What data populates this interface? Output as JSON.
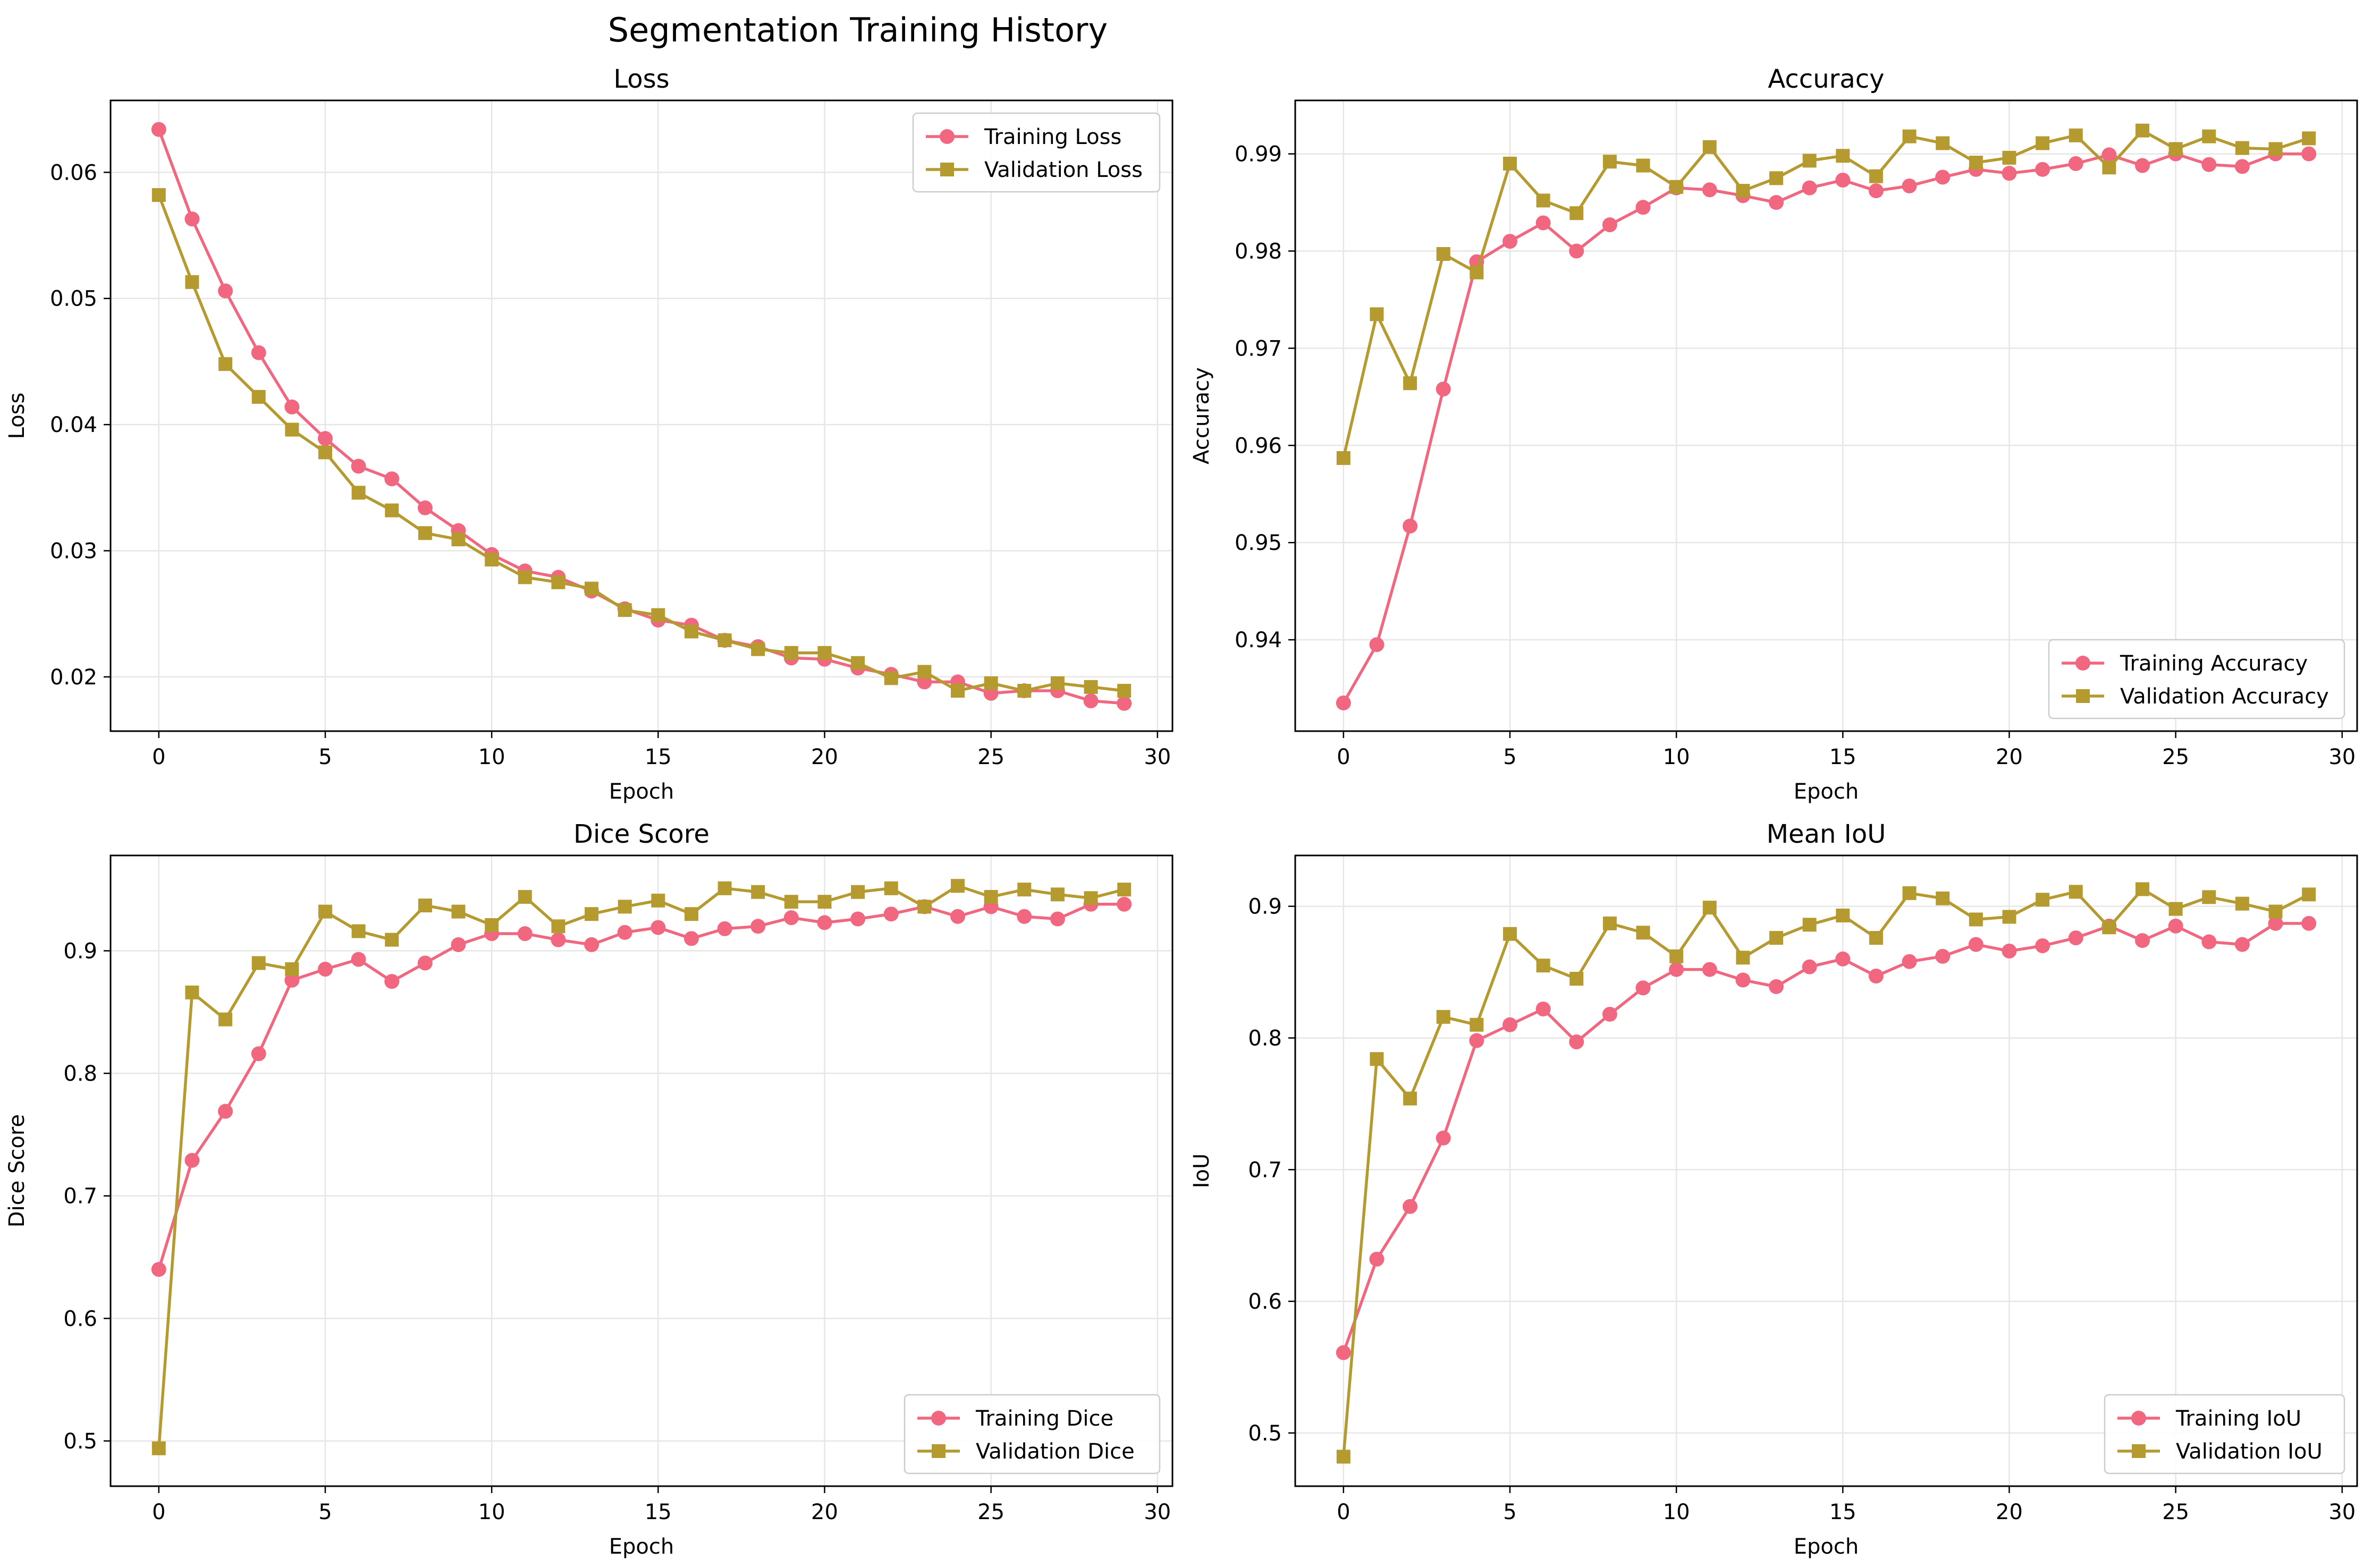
{
  "figure": {
    "title": "Segmentation Training History"
  },
  "colors": {
    "training": "#f0677f",
    "validation": "#b59a2f",
    "grid": "#e6e6e6",
    "axis": "#000000"
  },
  "chart_data": [
    {
      "type": "line",
      "title": "Loss",
      "xlabel": "Epoch",
      "ylabel": "Loss",
      "xlim": [
        -1.45,
        30.45
      ],
      "ylim": [
        0.0157,
        0.0657
      ],
      "xticks": [
        0,
        5,
        10,
        15,
        20,
        25,
        30
      ],
      "yticks": [
        0.02,
        0.03,
        0.04,
        0.05,
        0.06
      ],
      "ytick_labels": [
        "0.02",
        "0.03",
        "0.04",
        "0.05",
        "0.06"
      ],
      "legend": "top-right",
      "grid": true,
      "x": [
        0,
        1,
        2,
        3,
        4,
        5,
        6,
        7,
        8,
        9,
        10,
        11,
        12,
        13,
        14,
        15,
        16,
        17,
        18,
        19,
        20,
        21,
        22,
        23,
        24,
        25,
        26,
        27,
        28,
        29
      ],
      "series": [
        {
          "name": "Training Loss",
          "marker": "circle",
          "values": [
            0.0634,
            0.0563,
            0.0506,
            0.0457,
            0.0414,
            0.0389,
            0.0367,
            0.0357,
            0.0334,
            0.0316,
            0.0297,
            0.0284,
            0.0279,
            0.0268,
            0.0254,
            0.0245,
            0.0241,
            0.0229,
            0.0224,
            0.0215,
            0.0214,
            0.0207,
            0.0202,
            0.0196,
            0.0196,
            0.0187,
            0.0189,
            0.0189,
            0.0181,
            0.0179
          ]
        },
        {
          "name": "Validation Loss",
          "marker": "square",
          "values": [
            0.0582,
            0.0513,
            0.0448,
            0.0422,
            0.0396,
            0.0378,
            0.0346,
            0.0332,
            0.0314,
            0.0309,
            0.0293,
            0.0279,
            0.0275,
            0.027,
            0.0253,
            0.0249,
            0.0236,
            0.0229,
            0.0222,
            0.0219,
            0.0219,
            0.0211,
            0.0199,
            0.0204,
            0.0189,
            0.0195,
            0.0189,
            0.0195,
            0.0192,
            0.0189
          ]
        }
      ]
    },
    {
      "type": "line",
      "title": "Accuracy",
      "xlabel": "Epoch",
      "ylabel": "Accuracy",
      "xlim": [
        -1.45,
        30.45
      ],
      "ylim": [
        0.9306,
        0.9955
      ],
      "xticks": [
        0,
        5,
        10,
        15,
        20,
        25,
        30
      ],
      "yticks": [
        0.94,
        0.95,
        0.96,
        0.97,
        0.98,
        0.99
      ],
      "ytick_labels": [
        "0.94",
        "0.95",
        "0.96",
        "0.97",
        "0.98",
        "0.99"
      ],
      "legend": "bottom-right",
      "grid": true,
      "x": [
        0,
        1,
        2,
        3,
        4,
        5,
        6,
        7,
        8,
        9,
        10,
        11,
        12,
        13,
        14,
        15,
        16,
        17,
        18,
        19,
        20,
        21,
        22,
        23,
        24,
        25,
        26,
        27,
        28,
        29
      ],
      "series": [
        {
          "name": "Training Accuracy",
          "marker": "circle",
          "values": [
            0.9335,
            0.9395,
            0.9517,
            0.9658,
            0.9789,
            0.981,
            0.9829,
            0.98,
            0.9827,
            0.9845,
            0.9865,
            0.9863,
            0.9857,
            0.985,
            0.9865,
            0.9873,
            0.9862,
            0.9867,
            0.9876,
            0.9884,
            0.988,
            0.9884,
            0.989,
            0.9899,
            0.9888,
            0.99,
            0.9889,
            0.9887,
            0.99,
            0.99
          ]
        },
        {
          "name": "Validation Accuracy",
          "marker": "square",
          "values": [
            0.9587,
            0.9735,
            0.9664,
            0.9797,
            0.9778,
            0.989,
            0.9852,
            0.9839,
            0.9892,
            0.9888,
            0.9866,
            0.9907,
            0.9862,
            0.9875,
            0.9893,
            0.9898,
            0.9877,
            0.9918,
            0.9911,
            0.9891,
            0.9896,
            0.9911,
            0.9919,
            0.9886,
            0.9924,
            0.9905,
            0.9918,
            0.9906,
            0.9905,
            0.9916
          ]
        }
      ]
    },
    {
      "type": "line",
      "title": "Dice Score",
      "xlabel": "Epoch",
      "ylabel": "Dice Score",
      "xlim": [
        -1.45,
        30.45
      ],
      "ylim": [
        0.4631,
        0.9778
      ],
      "xticks": [
        0,
        5,
        10,
        15,
        20,
        25,
        30
      ],
      "yticks": [
        0.5,
        0.6,
        0.7,
        0.8,
        0.9
      ],
      "ytick_labels": [
        "0.5",
        "0.6",
        "0.7",
        "0.8",
        "0.9"
      ],
      "legend": "bottom-right",
      "grid": true,
      "x": [
        0,
        1,
        2,
        3,
        4,
        5,
        6,
        7,
        8,
        9,
        10,
        11,
        12,
        13,
        14,
        15,
        16,
        17,
        18,
        19,
        20,
        21,
        22,
        23,
        24,
        25,
        26,
        27,
        28,
        29
      ],
      "series": [
        {
          "name": "Training Dice",
          "marker": "circle",
          "values": [
            0.64,
            0.729,
            0.769,
            0.816,
            0.876,
            0.885,
            0.893,
            0.875,
            0.89,
            0.905,
            0.914,
            0.914,
            0.909,
            0.905,
            0.915,
            0.919,
            0.91,
            0.918,
            0.92,
            0.927,
            0.923,
            0.926,
            0.93,
            0.936,
            0.928,
            0.936,
            0.928,
            0.926,
            0.938,
            0.938
          ]
        },
        {
          "name": "Validation Dice",
          "marker": "square",
          "values": [
            0.494,
            0.866,
            0.844,
            0.89,
            0.885,
            0.932,
            0.916,
            0.909,
            0.937,
            0.932,
            0.921,
            0.944,
            0.92,
            0.93,
            0.936,
            0.941,
            0.93,
            0.951,
            0.948,
            0.94,
            0.94,
            0.948,
            0.951,
            0.936,
            0.953,
            0.944,
            0.95,
            0.946,
            0.943,
            0.95
          ]
        }
      ]
    },
    {
      "type": "line",
      "title": "Mean IoU",
      "xlabel": "Epoch",
      "ylabel": "IoU",
      "xlim": [
        -1.45,
        30.45
      ],
      "ylim": [
        0.4596,
        0.9386
      ],
      "xticks": [
        0,
        5,
        10,
        15,
        20,
        25,
        30
      ],
      "yticks": [
        0.5,
        0.6,
        0.7,
        0.8,
        0.9
      ],
      "ytick_labels": [
        "0.5",
        "0.6",
        "0.7",
        "0.8",
        "0.9"
      ],
      "legend": "bottom-right",
      "grid": true,
      "x": [
        0,
        1,
        2,
        3,
        4,
        5,
        6,
        7,
        8,
        9,
        10,
        11,
        12,
        13,
        14,
        15,
        16,
        17,
        18,
        19,
        20,
        21,
        22,
        23,
        24,
        25,
        26,
        27,
        28,
        29
      ],
      "series": [
        {
          "name": "Training IoU",
          "marker": "circle",
          "values": [
            0.561,
            0.632,
            0.672,
            0.724,
            0.798,
            0.81,
            0.822,
            0.797,
            0.818,
            0.838,
            0.852,
            0.852,
            0.844,
            0.839,
            0.854,
            0.86,
            0.847,
            0.858,
            0.862,
            0.871,
            0.866,
            0.87,
            0.876,
            0.885,
            0.874,
            0.885,
            0.873,
            0.871,
            0.887,
            0.887
          ]
        },
        {
          "name": "Validation IoU",
          "marker": "square",
          "values": [
            0.482,
            0.784,
            0.754,
            0.816,
            0.81,
            0.879,
            0.855,
            0.845,
            0.887,
            0.88,
            0.862,
            0.899,
            0.861,
            0.876,
            0.886,
            0.893,
            0.876,
            0.91,
            0.906,
            0.89,
            0.892,
            0.905,
            0.911,
            0.884,
            0.913,
            0.898,
            0.907,
            0.902,
            0.896,
            0.909
          ]
        }
      ]
    }
  ]
}
